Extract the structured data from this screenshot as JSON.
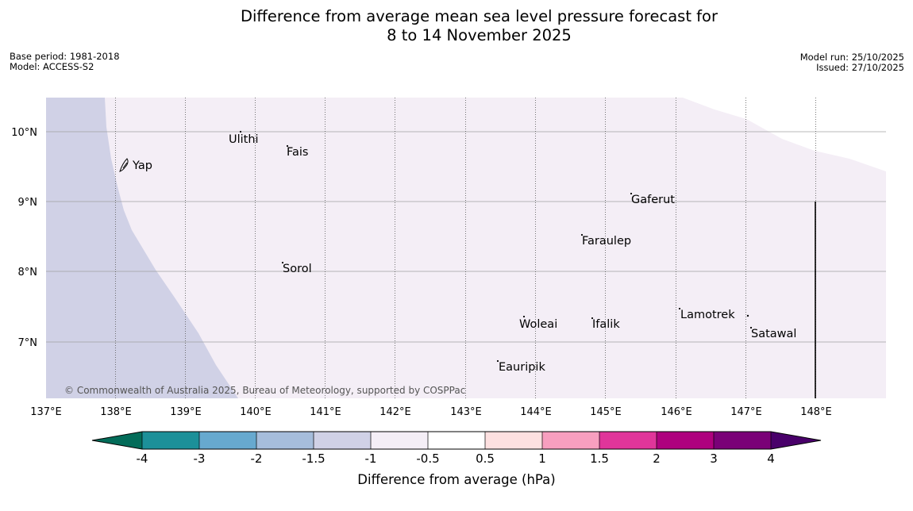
{
  "title": {
    "line1": "Difference from average mean sea level pressure forecast for",
    "line2": "8 to 14 November 2025"
  },
  "meta": {
    "base_period": "Base period: 1981-2018",
    "model": "Model: ACCESS-S2",
    "model_run": "Model run: 25/10/2025",
    "issued": "Issued: 27/10/2025"
  },
  "map": {
    "lat_labels": [
      "10°N",
      "9°N",
      "8°N",
      "7°N"
    ],
    "lon_labels": [
      "137°E",
      "138°E",
      "139°E",
      "140°E",
      "141°E",
      "142°E",
      "143°E",
      "144°E",
      "145°E",
      "146°E",
      "147°E",
      "148°E"
    ],
    "places": [
      "Ulithi",
      "Fais",
      "Yap",
      "Gaferut",
      "Faraulep",
      "Sorol",
      "Lamotrek",
      "Woleai",
      "Ifalik",
      "Satawal",
      "Eauripik"
    ],
    "copyright": "© Commonwealth of Australia 2025, Bureau of Meteorology, supported by COSPPac",
    "colors": {
      "anomaly_neg_1_5_to_neg_1": "#d0d1e6",
      "anomaly_neg_1_to_neg_0_5": "#f4eef6"
    }
  },
  "colorbar": {
    "ticks": [
      "-4",
      "-3",
      "-2",
      "-1.5",
      "-1",
      "-0.5",
      "0.5",
      "1",
      "1.5",
      "2",
      "3",
      "4"
    ],
    "label": "Difference from average (hPa)",
    "colors": [
      "#036c59",
      "#1c9099",
      "#67a9cf",
      "#a6bddb",
      "#d0d1e6",
      "#f4eef6",
      "#ffffff",
      "#fde0e0",
      "#f89fbf",
      "#e0359a",
      "#ae017e",
      "#7a0177",
      "#49006a"
    ]
  }
}
